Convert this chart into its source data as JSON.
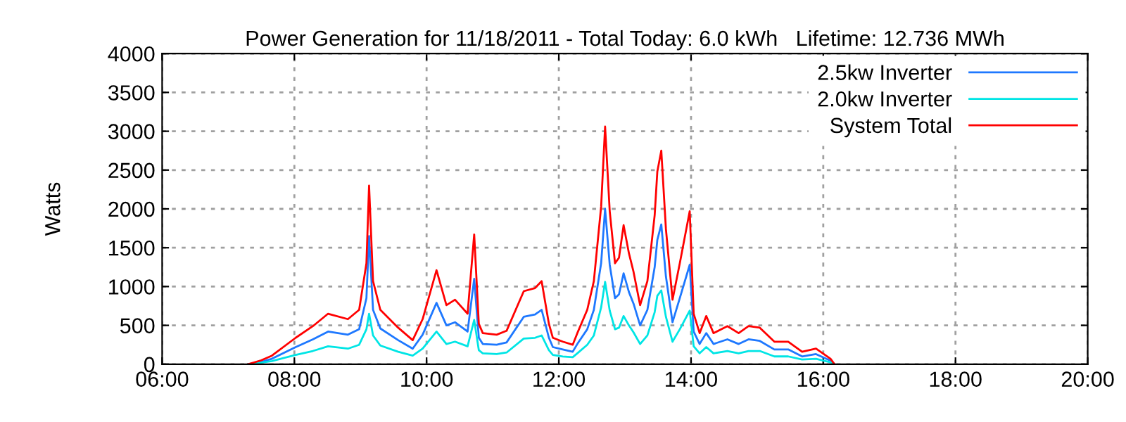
{
  "chart_data": {
    "type": "line",
    "title": "Power Generation for 11/18/2011 - Total Today: 6.0 kWh   Lifetime: 12.736 MWh",
    "ylabel": "Watts",
    "x": [
      7.3,
      7.5,
      7.66,
      8.02,
      8.28,
      8.51,
      8.81,
      8.98,
      9.09,
      9.13,
      9.19,
      9.3,
      9.57,
      9.79,
      9.94,
      10.15,
      10.3,
      10.43,
      10.62,
      10.72,
      10.79,
      10.85,
      11.06,
      11.21,
      11.47,
      11.64,
      11.74,
      11.85,
      11.91,
      12.06,
      12.21,
      12.28,
      12.43,
      12.53,
      12.64,
      12.7,
      12.77,
      12.85,
      12.91,
      12.98,
      13.06,
      13.13,
      13.23,
      13.34,
      13.45,
      13.49,
      13.55,
      13.62,
      13.72,
      13.83,
      13.98,
      14.04,
      14.13,
      14.23,
      14.34,
      14.55,
      14.72,
      14.87,
      15.04,
      15.26,
      15.47,
      15.68,
      15.89,
      16.11,
      16.17
    ],
    "series": [
      {
        "name": "2.5kw Inverter",
        "color": "#1e78ff",
        "values": [
          0,
          30,
          70,
          220,
          320,
          420,
          380,
          450,
          850,
          1650,
          700,
          460,
          310,
          200,
          380,
          790,
          500,
          540,
          420,
          1100,
          340,
          260,
          250,
          280,
          610,
          640,
          700,
          340,
          220,
          190,
          160,
          260,
          450,
          700,
          1300,
          2000,
          1280,
          850,
          900,
          1170,
          930,
          780,
          500,
          700,
          1250,
          1600,
          1800,
          1130,
          540,
          850,
          1280,
          420,
          260,
          400,
          260,
          320,
          260,
          320,
          300,
          190,
          190,
          100,
          130,
          45,
          0
        ]
      },
      {
        "name": "2.0kw Inverter",
        "color": "#00e5e5",
        "values": [
          0,
          20,
          40,
          120,
          170,
          230,
          200,
          250,
          450,
          650,
          370,
          240,
          160,
          110,
          200,
          420,
          260,
          290,
          230,
          570,
          180,
          140,
          130,
          150,
          330,
          340,
          370,
          180,
          120,
          100,
          90,
          140,
          250,
          370,
          730,
          1060,
          690,
          450,
          470,
          620,
          500,
          410,
          260,
          370,
          670,
          880,
          950,
          610,
          290,
          450,
          690,
          230,
          140,
          220,
          140,
          170,
          140,
          170,
          170,
          100,
          100,
          60,
          70,
          25,
          0
        ]
      },
      {
        "name": "System Total",
        "color": "#ff0000",
        "values": [
          0,
          50,
          110,
          340,
          490,
          650,
          580,
          700,
          1300,
          2300,
          1070,
          700,
          470,
          310,
          580,
          1210,
          760,
          830,
          650,
          1670,
          520,
          400,
          380,
          430,
          940,
          980,
          1070,
          520,
          340,
          290,
          250,
          400,
          700,
          1070,
          2030,
          3060,
          1970,
          1300,
          1370,
          1790,
          1430,
          1190,
          760,
          1070,
          1920,
          2480,
          2750,
          1740,
          830,
          1300,
          1970,
          650,
          400,
          620,
          400,
          490,
          400,
          490,
          470,
          290,
          290,
          160,
          200,
          70,
          0
        ]
      }
    ],
    "xlim": [
      6,
      20
    ],
    "xticks": [
      {
        "value": 6,
        "label": "06:00"
      },
      {
        "value": 8,
        "label": "08:00"
      },
      {
        "value": 10,
        "label": "10:00"
      },
      {
        "value": 12,
        "label": "12:00"
      },
      {
        "value": 14,
        "label": "14:00"
      },
      {
        "value": 16,
        "label": "16:00"
      },
      {
        "value": 18,
        "label": "18:00"
      },
      {
        "value": 20,
        "label": "20:00"
      }
    ],
    "ylim": [
      0,
      4000
    ],
    "yticks": [
      0,
      500,
      1000,
      1500,
      2000,
      2500,
      3000,
      3500,
      4000
    ],
    "grid": true,
    "legend": "top right",
    "line_style": "solid",
    "marker": "none"
  }
}
